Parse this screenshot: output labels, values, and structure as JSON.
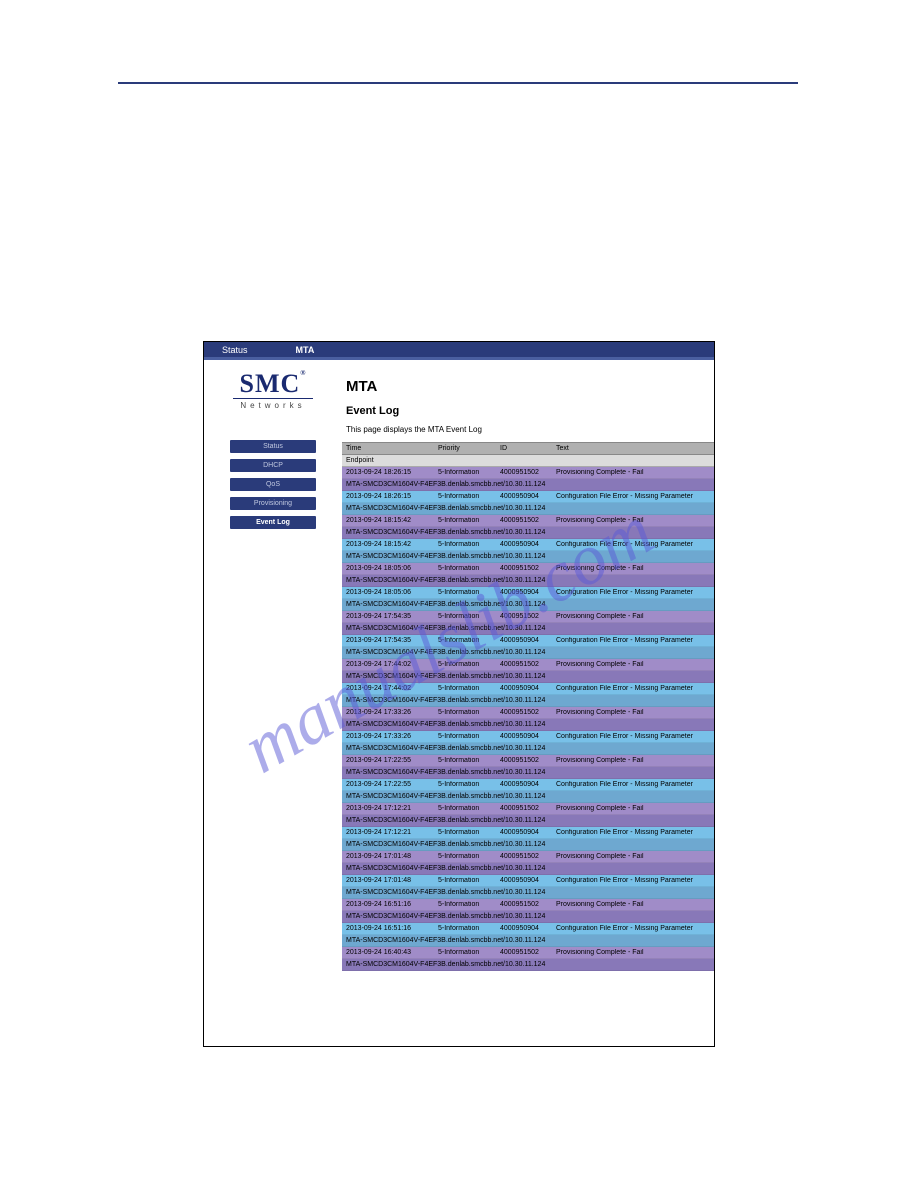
{
  "titlebar": {
    "crumb1": "Status",
    "crumb2": "MTA"
  },
  "logo": {
    "brand": "SMC",
    "reg": "®",
    "sub": "Networks"
  },
  "nav": {
    "items": [
      {
        "label": "Status",
        "active": false
      },
      {
        "label": "DHCP",
        "active": false
      },
      {
        "label": "QoS",
        "active": false
      },
      {
        "label": "Provisioning",
        "active": false
      },
      {
        "label": "Event Log",
        "active": true
      }
    ]
  },
  "page": {
    "title": "MTA",
    "subtitle": "Event Log",
    "description": "This page displays the MTA Event Log"
  },
  "columns": {
    "time": "Time",
    "priority": "Priority",
    "id": "ID",
    "text": "Text"
  },
  "endpoint_label": "Endpoint",
  "endpoint_string": "MTA-SMCD3CM1604V-F4EF3B.denlab.smcbb.net/10.30.11.124",
  "events": [
    {
      "time": "2013-09-24 18:26:15",
      "pri": "5-Information",
      "id": "4000951502",
      "text": "Provisioning Complete - Fail",
      "style_event": "purple",
      "style_ep": "purpledk"
    },
    {
      "time": "2013-09-24 18:26:15",
      "pri": "5-Information",
      "id": "4000950904",
      "text": "Configuration File Error - Missing Parameter",
      "style_event": "lightblue",
      "style_ep": "steel"
    },
    {
      "time": "2013-09-24 18:15:42",
      "pri": "5-Information",
      "id": "4000951502",
      "text": "Provisioning Complete - Fail",
      "style_event": "purple",
      "style_ep": "purpledk"
    },
    {
      "time": "2013-09-24 18:15:42",
      "pri": "5-Information",
      "id": "4000950904",
      "text": "Configuration File Error - Missing Parameter",
      "style_event": "lightblue",
      "style_ep": "steel"
    },
    {
      "time": "2013-09-24 18:05:06",
      "pri": "5-Information",
      "id": "4000951502",
      "text": "Provisioning Complete - Fail",
      "style_event": "purple",
      "style_ep": "purpledk"
    },
    {
      "time": "2013-09-24 18:05:06",
      "pri": "5-Information",
      "id": "4000950904",
      "text": "Configuration File Error - Missing Parameter",
      "style_event": "lightblue",
      "style_ep": "steel"
    },
    {
      "time": "2013-09-24 17:54:35",
      "pri": "5-Information",
      "id": "4000951502",
      "text": "Provisioning Complete - Fail",
      "style_event": "purple",
      "style_ep": "purpledk"
    },
    {
      "time": "2013-09-24 17:54:35",
      "pri": "5-Information",
      "id": "4000950904",
      "text": "Configuration File Error - Missing Parameter",
      "style_event": "lightblue",
      "style_ep": "steel"
    },
    {
      "time": "2013-09-24 17:44:02",
      "pri": "5-Information",
      "id": "4000951502",
      "text": "Provisioning Complete - Fail",
      "style_event": "purple",
      "style_ep": "purpledk"
    },
    {
      "time": "2013-09-24 17:44:02",
      "pri": "5-Information",
      "id": "4000950904",
      "text": "Configuration File Error - Missing Parameter",
      "style_event": "lightblue",
      "style_ep": "steel"
    },
    {
      "time": "2013-09-24 17:33:26",
      "pri": "5-Information",
      "id": "4000951502",
      "text": "Provisioning Complete - Fail",
      "style_event": "purple",
      "style_ep": "purpledk"
    },
    {
      "time": "2013-09-24 17:33:26",
      "pri": "5-Information",
      "id": "4000950904",
      "text": "Configuration File Error - Missing Parameter",
      "style_event": "lightblue",
      "style_ep": "steel"
    },
    {
      "time": "2013-09-24 17:22:55",
      "pri": "5-Information",
      "id": "4000951502",
      "text": "Provisioning Complete - Fail",
      "style_event": "purple",
      "style_ep": "purpledk"
    },
    {
      "time": "2013-09-24 17:22:55",
      "pri": "5-Information",
      "id": "4000950904",
      "text": "Configuration File Error - Missing Parameter",
      "style_event": "lightblue",
      "style_ep": "steel"
    },
    {
      "time": "2013-09-24 17:12:21",
      "pri": "5-Information",
      "id": "4000951502",
      "text": "Provisioning Complete - Fail",
      "style_event": "purple",
      "style_ep": "purpledk"
    },
    {
      "time": "2013-09-24 17:12:21",
      "pri": "5-Information",
      "id": "4000950904",
      "text": "Configuration File Error - Missing Parameter",
      "style_event": "lightblue",
      "style_ep": "steel"
    },
    {
      "time": "2013-09-24 17:01:48",
      "pri": "5-Information",
      "id": "4000951502",
      "text": "Provisioning Complete - Fail",
      "style_event": "purple",
      "style_ep": "purpledk"
    },
    {
      "time": "2013-09-24 17:01:48",
      "pri": "5-Information",
      "id": "4000950904",
      "text": "Configuration File Error - Missing Parameter",
      "style_event": "lightblue",
      "style_ep": "steel"
    },
    {
      "time": "2013-09-24 16:51:16",
      "pri": "5-Information",
      "id": "4000951502",
      "text": "Provisioning Complete - Fail",
      "style_event": "purple",
      "style_ep": "purpledk"
    },
    {
      "time": "2013-09-24 16:51:16",
      "pri": "5-Information",
      "id": "4000950904",
      "text": "Configuration File Error - Missing Parameter",
      "style_event": "lightblue",
      "style_ep": "steel"
    },
    {
      "time": "2013-09-24 16:40:43",
      "pri": "5-Information",
      "id": "4000951502",
      "text": "Provisioning Complete - Fail",
      "style_event": "purple",
      "style_ep": "purpledk"
    }
  ],
  "watermark": {
    "text": "manualslib.com",
    "color": "#5a5ad6",
    "opacity": 0.5,
    "fontsize": 72,
    "rotate": -30
  }
}
